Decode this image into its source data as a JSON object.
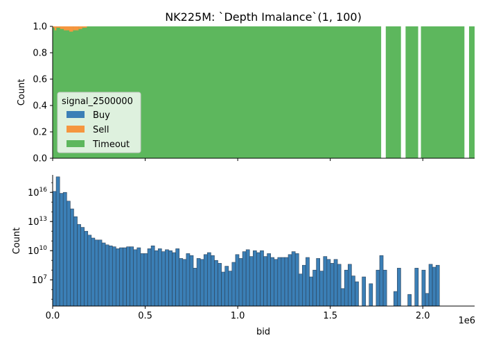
{
  "title": "NK225M: `Depth Imalance`(1, 100)",
  "chart_data": [
    {
      "type": "bar",
      "subtype": "stacked-fill-histogram",
      "ylabel": "Count",
      "ylim": [
        0,
        1
      ],
      "yticks": [
        "0.0",
        "0.2",
        "0.4",
        "0.6",
        "0.8",
        "1.0"
      ],
      "xlim": [
        0,
        2280000
      ],
      "legend": {
        "title": "signal_2500000",
        "placement": "center-left",
        "entries": [
          {
            "label": "Buy",
            "color": "#3b7fb6"
          },
          {
            "label": "Sell",
            "color": "#f5963f"
          },
          {
            "label": "Timeout",
            "color": "#5db75d"
          }
        ]
      },
      "timeout_bands": [
        [
          0,
          1775000
        ],
        [
          1800000,
          1882000
        ],
        [
          1907000,
          1975000
        ],
        [
          1990000,
          2225000
        ],
        [
          2250000,
          2280000
        ]
      ],
      "sell_fraction_steps": [
        {
          "x0": 0,
          "x1": 10000,
          "value": 0.01
        },
        {
          "x0": 10000,
          "x1": 20000,
          "value": 0.03
        },
        {
          "x0": 20000,
          "x1": 40000,
          "value": 0.01
        },
        {
          "x0": 40000,
          "x1": 60000,
          "value": 0.02
        },
        {
          "x0": 60000,
          "x1": 90000,
          "value": 0.03
        },
        {
          "x0": 90000,
          "x1": 110000,
          "value": 0.04
        },
        {
          "x0": 110000,
          "x1": 140000,
          "value": 0.03
        },
        {
          "x0": 140000,
          "x1": 160000,
          "value": 0.02
        },
        {
          "x0": 160000,
          "x1": 185000,
          "value": 0.01
        }
      ]
    },
    {
      "type": "bar",
      "subtype": "histogram",
      "xlabel": "bid",
      "ylabel": "Count",
      "yscale": "log",
      "xlim": [
        0,
        2280000
      ],
      "ylim_log10": [
        4.3,
        17.8
      ],
      "xticks": [
        "0.0",
        "0.5",
        "1.0",
        "1.5",
        "2.0"
      ],
      "x_offset_label": "1e6",
      "ytick_exponents": [
        7,
        10,
        13,
        16
      ],
      "bin_width": 19000,
      "color": "#3b7fb6",
      "log10_counts": [
        16.1,
        17.6,
        15.9,
        16.0,
        15.1,
        14.3,
        13.5,
        12.7,
        12.4,
        12.0,
        11.6,
        11.3,
        11.1,
        11.1,
        10.8,
        10.6,
        10.5,
        10.4,
        10.2,
        10.3,
        10.3,
        10.4,
        10.4,
        10.1,
        10.3,
        9.7,
        9.7,
        10.2,
        10.5,
        10.0,
        10.2,
        9.9,
        10.1,
        10.0,
        9.8,
        10.2,
        9.2,
        9.1,
        9.7,
        9.5,
        8.2,
        9.2,
        9.1,
        9.6,
        9.8,
        9.5,
        9.0,
        8.7,
        7.8,
        8.4,
        7.9,
        8.8,
        9.6,
        9.2,
        9.9,
        10.1,
        9.4,
        10.0,
        9.8,
        10.0,
        9.4,
        9.7,
        9.3,
        9.1,
        9.3,
        9.3,
        9.3,
        9.6,
        9.9,
        9.7,
        7.6,
        8.5,
        9.3,
        7.3,
        8.0,
        9.2,
        7.9,
        9.4,
        9.1,
        8.7,
        9.1,
        8.6,
        6.1,
        8.0,
        8.6,
        7.4,
        6.8,
        4.3,
        7.3,
        4.3,
        6.6,
        4.3,
        8.0,
        9.5,
        8.0,
        4.3,
        4.3,
        5.8,
        8.2,
        4.3,
        4.3,
        5.5,
        4.3,
        8.2,
        4.3,
        8.0,
        5.6,
        8.6,
        8.3,
        8.5
      ]
    }
  ]
}
